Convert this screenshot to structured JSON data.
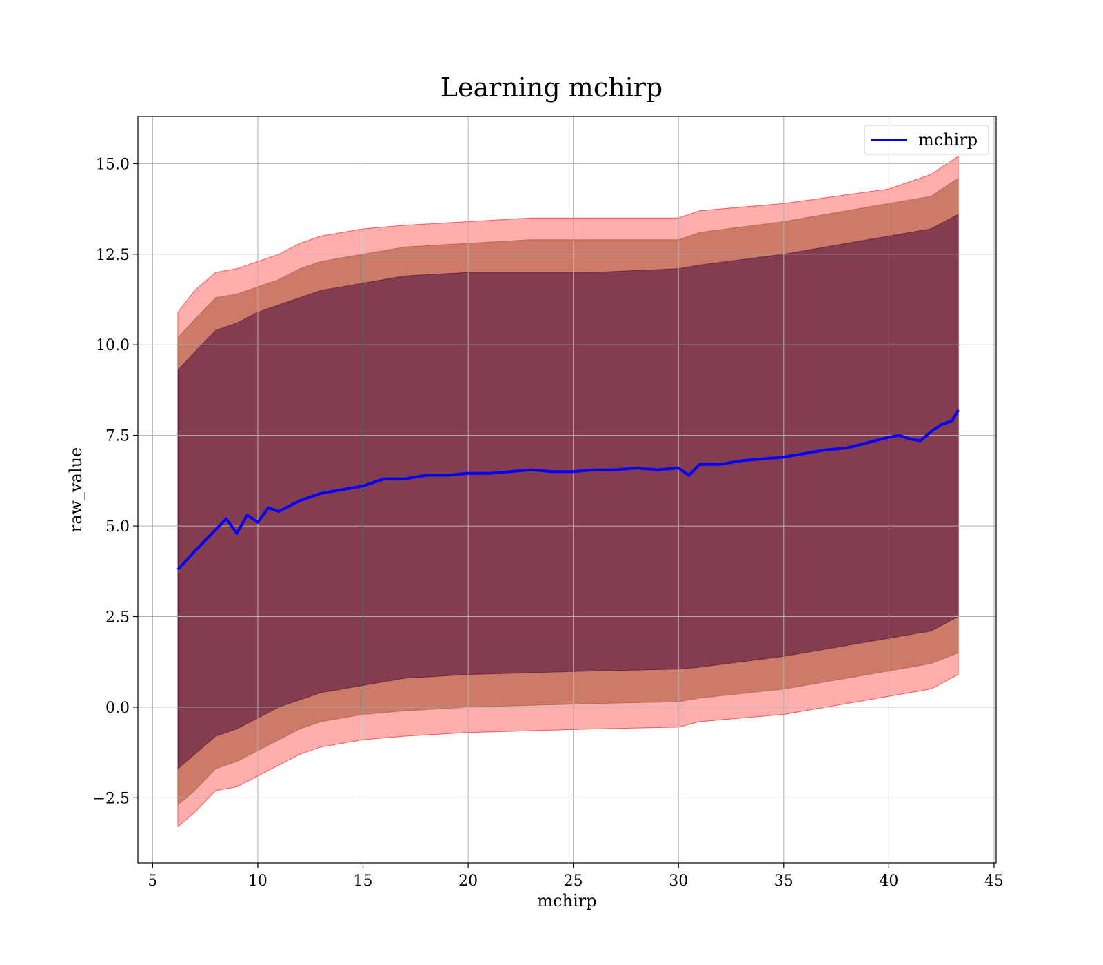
{
  "chart_data": {
    "type": "line",
    "title": "Learning mchirp",
    "xlabel": "mchirp",
    "ylabel": "raw_value",
    "xlim": [
      4.3,
      45.1
    ],
    "ylim": [
      -4.3,
      16.3
    ],
    "xticks": [
      5,
      10,
      15,
      20,
      25,
      30,
      35,
      40,
      45
    ],
    "yticks": [
      -2.5,
      0.0,
      2.5,
      5.0,
      7.5,
      10.0,
      12.5,
      15.0
    ],
    "xtick_labels": [
      "5",
      "10",
      "15",
      "20",
      "25",
      "30",
      "35",
      "40",
      "45"
    ],
    "ytick_labels": [
      "−2.5",
      "0.0",
      "2.5",
      "5.0",
      "7.5",
      "10.0",
      "12.5",
      "15.0"
    ],
    "grid": true,
    "legend": {
      "position": "upper-right",
      "entries": [
        "mchirp"
      ]
    },
    "colors": {
      "line": "#0000ff",
      "band_outer": "#ff0000",
      "band_middle": "#a0522d",
      "band_inner": "#4b0a3c",
      "grid": "#b0b0b0"
    },
    "series": [
      {
        "name": "mchirp",
        "x": [
          6.2,
          7.0,
          8.0,
          8.5,
          9.0,
          9.5,
          10.0,
          10.5,
          11.0,
          12.0,
          13.0,
          14.0,
          15.0,
          16.0,
          17.0,
          18.0,
          19.0,
          20.0,
          21.0,
          22.0,
          23.0,
          24.0,
          25.0,
          26.0,
          27.0,
          28.0,
          29.0,
          30.0,
          30.5,
          31.0,
          32.0,
          33.0,
          34.0,
          35.0,
          36.0,
          37.0,
          38.0,
          39.0,
          40.0,
          40.5,
          41.0,
          41.5,
          42.0,
          42.5,
          43.0,
          43.3
        ],
        "y": [
          3.8,
          4.3,
          4.9,
          5.2,
          4.8,
          5.3,
          5.1,
          5.5,
          5.4,
          5.7,
          5.9,
          6.0,
          6.1,
          6.3,
          6.3,
          6.4,
          6.4,
          6.45,
          6.45,
          6.5,
          6.55,
          6.5,
          6.5,
          6.55,
          6.55,
          6.6,
          6.55,
          6.6,
          6.4,
          6.7,
          6.7,
          6.8,
          6.85,
          6.9,
          7.0,
          7.1,
          7.15,
          7.3,
          7.45,
          7.5,
          7.4,
          7.35,
          7.6,
          7.8,
          7.9,
          8.2
        ]
      }
    ],
    "bands": [
      {
        "level": "outer",
        "x": [
          6.2,
          7.0,
          8.0,
          9.0,
          10.0,
          11.0,
          12.0,
          13.0,
          14.0,
          15.0,
          17.0,
          20.0,
          23.0,
          26.0,
          30.0,
          31.0,
          35.0,
          40.0,
          42.0,
          43.3
        ],
        "upper": [
          10.9,
          11.5,
          12.0,
          12.1,
          12.3,
          12.5,
          12.8,
          13.0,
          13.1,
          13.2,
          13.3,
          13.4,
          13.5,
          13.5,
          13.5,
          13.7,
          13.9,
          14.3,
          14.7,
          15.2
        ],
        "lower": [
          -3.3,
          -2.9,
          -2.3,
          -2.2,
          -1.9,
          -1.6,
          -1.3,
          -1.1,
          -1.0,
          -0.9,
          -0.8,
          -0.7,
          -0.65,
          -0.6,
          -0.55,
          -0.4,
          -0.2,
          0.3,
          0.5,
          0.9
        ]
      },
      {
        "level": "middle",
        "x": [
          6.2,
          7.0,
          8.0,
          9.0,
          10.0,
          11.0,
          12.0,
          13.0,
          14.0,
          15.0,
          17.0,
          20.0,
          23.0,
          26.0,
          30.0,
          31.0,
          35.0,
          40.0,
          42.0,
          43.3
        ],
        "upper": [
          10.2,
          10.7,
          11.3,
          11.4,
          11.6,
          11.8,
          12.1,
          12.3,
          12.4,
          12.5,
          12.7,
          12.8,
          12.9,
          12.9,
          12.9,
          13.1,
          13.4,
          13.9,
          14.1,
          14.6
        ],
        "lower": [
          -2.7,
          -2.3,
          -1.7,
          -1.5,
          -1.2,
          -0.9,
          -0.6,
          -0.4,
          -0.3,
          -0.2,
          -0.1,
          0.0,
          0.05,
          0.1,
          0.15,
          0.25,
          0.5,
          1.0,
          1.2,
          1.5
        ]
      },
      {
        "level": "inner",
        "x": [
          6.2,
          7.0,
          8.0,
          9.0,
          10.0,
          11.0,
          12.0,
          13.0,
          14.0,
          15.0,
          17.0,
          20.0,
          23.0,
          26.0,
          30.0,
          31.0,
          35.0,
          40.0,
          42.0,
          43.3
        ],
        "upper": [
          9.3,
          9.8,
          10.4,
          10.6,
          10.9,
          11.1,
          11.3,
          11.5,
          11.6,
          11.7,
          11.9,
          12.0,
          12.0,
          12.0,
          12.1,
          12.2,
          12.5,
          13.0,
          13.2,
          13.6
        ],
        "lower": [
          -1.7,
          -1.3,
          -0.8,
          -0.6,
          -0.3,
          0.0,
          0.2,
          0.4,
          0.5,
          0.6,
          0.8,
          0.9,
          0.95,
          1.0,
          1.05,
          1.1,
          1.4,
          1.9,
          2.1,
          2.5
        ]
      }
    ]
  }
}
